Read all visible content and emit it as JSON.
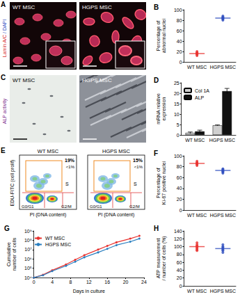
{
  "images": [
    {
      "title": "A",
      "side_label": [
        "Lamin A/C",
        "/ DAPI"
      ],
      "panels": [
        "WT MSC",
        "HGPS MSC"
      ]
    },
    {
      "title": "C",
      "side_label": [
        "ALP activity"
      ],
      "panels": [
        "WT MSC",
        "HGPS MSC"
      ]
    }
  ],
  "flow": {
    "title": "E",
    "ylabel": "EDU-FITC (cell prolif)",
    "xlabel": "PI (DNA content)",
    "gates": [
      "S",
      "G0/G1",
      "G2/M"
    ],
    "plots": [
      {
        "name": "WT MSC",
        "s": "19%",
        "other": "<1%"
      },
      {
        "name": "HGPS MSC",
        "s": "15%",
        "other": "<1%"
      }
    ]
  },
  "chart_data": [
    {
      "type": "dot",
      "title": "B",
      "ylabel": "Percentage of\nabnormal nuclei",
      "categories": [
        "WT MSC",
        "HGPS MSC"
      ],
      "points": [
        [
          12,
          15,
          18,
          20,
          16,
          14,
          17
        ],
        [
          80,
          83,
          85,
          88,
          86,
          84,
          82
        ]
      ],
      "mean": [
        16,
        84
      ],
      "colors": [
        "#e8322f",
        "#2f4fbf"
      ],
      "ylim": [
        0,
        100
      ],
      "yticks": [
        0,
        20,
        40,
        60,
        80,
        100
      ],
      "grid": false
    },
    {
      "type": "bar",
      "title": "D",
      "ylabel": "mRNA relative\nexpression",
      "categories": [
        "WT MSC",
        "HGPS MSC"
      ],
      "series": [
        {
          "name": "Col 1A",
          "color": "#cfcfcf",
          "values": [
            1,
            4.6
          ],
          "errors": [
            0.4,
            0.2
          ]
        },
        {
          "name": "ALP",
          "color": "#111111",
          "values": [
            1.7,
            21
          ],
          "errors": [
            0.6,
            1.3
          ]
        }
      ],
      "ylim": [
        0,
        25
      ],
      "yticks": [
        0,
        5,
        10,
        15,
        20,
        25
      ],
      "legend": "upper left",
      "grid": false
    },
    {
      "type": "dot",
      "title": "F",
      "ylabel": "Percentage of\nKi-67 positive nuclei",
      "categories": [
        "WT MSC",
        "HGPS MSC"
      ],
      "points": [
        [
          88,
          85,
          90,
          82,
          86,
          84,
          87
        ],
        [
          75,
          70,
          72,
          68,
          76,
          73,
          71
        ]
      ],
      "mean": [
        86,
        73
      ],
      "colors": [
        "#e8322f",
        "#2f4fbf"
      ],
      "ylim": [
        0,
        100
      ],
      "yticks": [
        0,
        20,
        40,
        60,
        80,
        100
      ],
      "grid": false
    },
    {
      "type": "line",
      "title": "G",
      "xlabel": "Days in culture",
      "ylabel": "Cumulative\nnumber of cells",
      "x": [
        0,
        2,
        4,
        7,
        9,
        11,
        14,
        16,
        18,
        21,
        23
      ],
      "series": [
        {
          "name": "WT MSC",
          "color": "#e8322f",
          "values": [
            10000,
            20000,
            60000,
            250000,
            800000,
            2500000,
            10000000,
            25000000,
            60000000,
            150000000,
            300000000
          ]
        },
        {
          "name": "HGPS MSC",
          "color": "#2a7fc0",
          "values": [
            10000,
            18000,
            50000,
            180000,
            500000,
            1500000,
            5000000,
            12000000,
            30000000,
            70000000,
            150000000
          ]
        }
      ],
      "log": "y",
      "marker": "circle",
      "legend": "upper left",
      "grid": false,
      "xlim": [
        0,
        24
      ],
      "xticks": [
        0,
        4,
        8,
        12,
        16,
        20,
        24
      ],
      "ylim": [
        10000,
        1000000000
      ],
      "yticks": [
        {
          "value": 10000,
          "label": "10⁴"
        },
        {
          "value": 100000,
          "label": "10⁵"
        },
        {
          "value": 1000000,
          "label": "10⁶"
        },
        {
          "value": 10000000,
          "label": "10⁷"
        },
        {
          "value": 100000000,
          "label": "10⁸"
        },
        {
          "value": 1000000000,
          "label": "10⁹"
        }
      ]
    },
    {
      "type": "dot",
      "title": "H",
      "ylabel": "ATP measurement\n/ number of cells (%)",
      "categories": [
        "WT MSC",
        "HGPS MSC"
      ],
      "points": [
        [
          100,
          110,
          95,
          105,
          90,
          98,
          102,
          92
        ],
        [
          95,
          90,
          100,
          85,
          98,
          92,
          105
        ]
      ],
      "mean": [
        100,
        95
      ],
      "colors": [
        "#e8322f",
        "#2f4fbf"
      ],
      "ylim": [
        0,
        140
      ],
      "yticks": [
        0,
        20,
        40,
        60,
        80,
        100,
        120,
        140
      ],
      "grid": false
    }
  ]
}
